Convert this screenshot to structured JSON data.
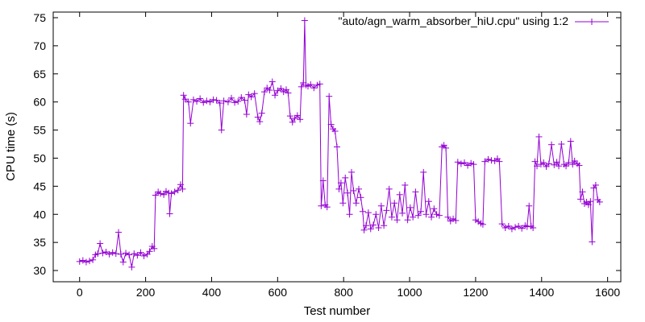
{
  "chart_data": {
    "type": "line",
    "title": "",
    "xlabel": "Test number",
    "ylabel": "CPU time (s)",
    "xlim": [
      -80,
      1640
    ],
    "ylim": [
      28,
      76
    ],
    "xticks": [
      0,
      200,
      400,
      600,
      800,
      1000,
      1200,
      1400,
      1600
    ],
    "yticks": [
      30,
      35,
      40,
      45,
      50,
      55,
      60,
      65,
      70,
      75
    ],
    "grid": false,
    "legend_position": "top-right",
    "series": [
      {
        "name": "\"auto/agn_warm_absorber_hiU.cpu\" using 1:2",
        "color": "#9400d3",
        "marker": "plus",
        "points": [
          [
            0,
            31.6
          ],
          [
            10,
            31.8
          ],
          [
            20,
            31.5
          ],
          [
            30,
            31.7
          ],
          [
            40,
            31.9
          ],
          [
            48,
            32.8
          ],
          [
            55,
            33.0
          ],
          [
            62,
            34.8
          ],
          [
            70,
            33.1
          ],
          [
            80,
            33.3
          ],
          [
            90,
            32.9
          ],
          [
            100,
            33.2
          ],
          [
            110,
            33.0
          ],
          [
            118,
            36.8
          ],
          [
            125,
            32.9
          ],
          [
            132,
            31.5
          ],
          [
            140,
            33.1
          ],
          [
            150,
            32.8
          ],
          [
            158,
            30.6
          ],
          [
            165,
            33.0
          ],
          [
            175,
            32.7
          ],
          [
            185,
            33.2
          ],
          [
            195,
            32.6
          ],
          [
            205,
            32.9
          ],
          [
            212,
            33.4
          ],
          [
            220,
            34.3
          ],
          [
            226,
            33.9
          ],
          [
            230,
            43.4
          ],
          [
            238,
            44.0
          ],
          [
            245,
            43.7
          ],
          [
            255,
            43.5
          ],
          [
            262,
            44.1
          ],
          [
            270,
            43.8
          ],
          [
            273,
            40.1
          ],
          [
            278,
            43.7
          ],
          [
            288,
            44.0
          ],
          [
            298,
            44.3
          ],
          [
            306,
            45.3
          ],
          [
            312,
            44.5
          ],
          [
            315,
            61.2
          ],
          [
            320,
            60.5
          ],
          [
            330,
            60.0
          ],
          [
            336,
            56.2
          ],
          [
            345,
            60.4
          ],
          [
            355,
            60.1
          ],
          [
            365,
            60.6
          ],
          [
            375,
            59.9
          ],
          [
            385,
            60.2
          ],
          [
            395,
            60.0
          ],
          [
            405,
            60.4
          ],
          [
            415,
            60.3
          ],
          [
            425,
            59.8
          ],
          [
            430,
            55.0
          ],
          [
            437,
            60.2
          ],
          [
            450,
            60.0
          ],
          [
            460,
            60.7
          ],
          [
            470,
            59.9
          ],
          [
            480,
            60.1
          ],
          [
            490,
            60.8
          ],
          [
            500,
            60.3
          ],
          [
            506,
            57.8
          ],
          [
            512,
            61.3
          ],
          [
            520,
            60.9
          ],
          [
            530,
            61.5
          ],
          [
            540,
            57.3
          ],
          [
            546,
            56.5
          ],
          [
            552,
            58.0
          ],
          [
            560,
            61.8
          ],
          [
            568,
            62.5
          ],
          [
            576,
            62.1
          ],
          [
            584,
            63.6
          ],
          [
            592,
            61.2
          ],
          [
            600,
            62.0
          ],
          [
            610,
            62.4
          ],
          [
            618,
            61.8
          ],
          [
            626,
            62.2
          ],
          [
            632,
            61.6
          ],
          [
            638,
            57.5
          ],
          [
            645,
            56.4
          ],
          [
            652,
            57.1
          ],
          [
            660,
            57.6
          ],
          [
            668,
            56.9
          ],
          [
            672,
            62.7
          ],
          [
            678,
            63.4
          ],
          [
            682,
            74.5
          ],
          [
            686,
            63.0
          ],
          [
            692,
            62.8
          ],
          [
            700,
            63.1
          ],
          [
            710,
            62.5
          ],
          [
            720,
            63.0
          ],
          [
            728,
            63.2
          ],
          [
            732,
            41.5
          ],
          [
            738,
            46.0
          ],
          [
            744,
            41.7
          ],
          [
            750,
            41.3
          ],
          [
            756,
            61.0
          ],
          [
            762,
            56.0
          ],
          [
            768,
            55.2
          ],
          [
            774,
            54.8
          ],
          [
            780,
            52.0
          ],
          [
            786,
            44.5
          ],
          [
            792,
            45.6
          ],
          [
            798,
            42.0
          ],
          [
            805,
            46.5
          ],
          [
            812,
            43.8
          ],
          [
            818,
            40.0
          ],
          [
            824,
            47.5
          ],
          [
            830,
            44.2
          ],
          [
            838,
            42.0
          ],
          [
            846,
            44.5
          ],
          [
            852,
            43.0
          ],
          [
            858,
            40.5
          ],
          [
            862,
            37.2
          ],
          [
            868,
            38.0
          ],
          [
            875,
            40.3
          ],
          [
            882,
            37.4
          ],
          [
            890,
            38.1
          ],
          [
            898,
            40.0
          ],
          [
            906,
            37.6
          ],
          [
            914,
            41.5
          ],
          [
            922,
            38.0
          ],
          [
            930,
            40.7
          ],
          [
            938,
            44.5
          ],
          [
            946,
            39.5
          ],
          [
            954,
            42.0
          ],
          [
            962,
            39.0
          ],
          [
            970,
            43.5
          ],
          [
            978,
            40.2
          ],
          [
            986,
            45.2
          ],
          [
            994,
            39.0
          ],
          [
            1002,
            41.2
          ],
          [
            1010,
            39.5
          ],
          [
            1018,
            44.0
          ],
          [
            1026,
            39.8
          ],
          [
            1034,
            40.5
          ],
          [
            1042,
            47.5
          ],
          [
            1050,
            40.0
          ],
          [
            1058,
            42.3
          ],
          [
            1066,
            39.5
          ],
          [
            1074,
            41.0
          ],
          [
            1082,
            40.0
          ],
          [
            1090,
            39.8
          ],
          [
            1098,
            52.0
          ],
          [
            1104,
            52.3
          ],
          [
            1110,
            51.8
          ],
          [
            1116,
            39.5
          ],
          [
            1124,
            38.8
          ],
          [
            1132,
            39.2
          ],
          [
            1140,
            38.9
          ],
          [
            1146,
            49.3
          ],
          [
            1156,
            49.0
          ],
          [
            1166,
            49.2
          ],
          [
            1176,
            48.7
          ],
          [
            1186,
            49.1
          ],
          [
            1194,
            48.9
          ],
          [
            1200,
            39.0
          ],
          [
            1208,
            38.7
          ],
          [
            1216,
            38.4
          ],
          [
            1222,
            38.2
          ],
          [
            1228,
            49.4
          ],
          [
            1238,
            49.8
          ],
          [
            1248,
            49.6
          ],
          [
            1258,
            49.5
          ],
          [
            1266,
            49.9
          ],
          [
            1272,
            49.4
          ],
          [
            1280,
            38.3
          ],
          [
            1290,
            37.6
          ],
          [
            1300,
            37.9
          ],
          [
            1310,
            37.4
          ],
          [
            1320,
            37.7
          ],
          [
            1330,
            37.9
          ],
          [
            1340,
            37.5
          ],
          [
            1350,
            38.0
          ],
          [
            1356,
            37.8
          ],
          [
            1362,
            41.5
          ],
          [
            1368,
            37.9
          ],
          [
            1374,
            37.6
          ],
          [
            1380,
            49.4
          ],
          [
            1386,
            48.6
          ],
          [
            1392,
            53.8
          ],
          [
            1398,
            48.9
          ],
          [
            1406,
            49.2
          ],
          [
            1414,
            48.5
          ],
          [
            1422,
            49.0
          ],
          [
            1430,
            52.4
          ],
          [
            1438,
            48.8
          ],
          [
            1446,
            49.3
          ],
          [
            1452,
            48.6
          ],
          [
            1460,
            52.5
          ],
          [
            1468,
            48.9
          ],
          [
            1474,
            48.6
          ],
          [
            1482,
            49.2
          ],
          [
            1488,
            53.0
          ],
          [
            1494,
            48.9
          ],
          [
            1500,
            49.5
          ],
          [
            1508,
            49.0
          ],
          [
            1514,
            48.7
          ],
          [
            1518,
            42.7
          ],
          [
            1524,
            44.0
          ],
          [
            1530,
            41.9
          ],
          [
            1536,
            42.2
          ],
          [
            1542,
            41.7
          ],
          [
            1548,
            42.3
          ],
          [
            1553,
            35.1
          ],
          [
            1558,
            44.7
          ],
          [
            1564,
            45.2
          ],
          [
            1570,
            42.6
          ],
          [
            1576,
            42.2
          ]
        ]
      }
    ]
  }
}
